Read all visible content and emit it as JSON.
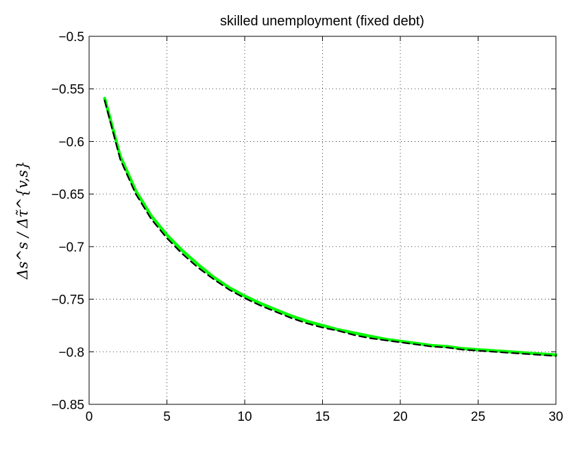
{
  "chart_data": {
    "type": "line",
    "title": "skilled unemployment (fixed debt)",
    "xlabel": "",
    "ylabel": "Δs^s / Δτ̃^{v,s}",
    "xlim": [
      0,
      30
    ],
    "ylim": [
      -0.85,
      -0.5
    ],
    "grid": true,
    "x_ticks": [
      0,
      5,
      10,
      15,
      20,
      25,
      30
    ],
    "y_ticks": [
      -0.5,
      -0.55,
      -0.6,
      -0.65,
      -0.7,
      -0.75,
      -0.8,
      -0.85
    ],
    "x_tick_labels": [
      "0",
      "5",
      "10",
      "15",
      "20",
      "25",
      "30"
    ],
    "y_tick_labels": [
      "−0.5",
      "−0.55",
      "−0.6",
      "−0.65",
      "−0.7",
      "−0.75",
      "−0.8",
      "−0.85"
    ],
    "series": [
      {
        "style": "solid",
        "color": "#00ff00",
        "x": [
          1,
          2,
          3,
          4,
          5,
          6,
          7,
          8,
          9,
          10,
          11,
          12,
          13,
          14,
          15,
          16,
          17,
          18,
          19,
          20,
          21,
          22,
          23,
          24,
          25,
          26,
          27,
          28,
          29,
          30
        ],
        "y": [
          -0.559,
          -0.614,
          -0.647,
          -0.671,
          -0.689,
          -0.704,
          -0.717,
          -0.729,
          -0.739,
          -0.747,
          -0.754,
          -0.76,
          -0.766,
          -0.771,
          -0.775,
          -0.779,
          -0.782,
          -0.785,
          -0.788,
          -0.79,
          -0.792,
          -0.794,
          -0.795,
          -0.797,
          -0.798,
          -0.799,
          -0.8,
          -0.801,
          -0.802,
          -0.803
        ]
      },
      {
        "style": "dashed",
        "color": "#000000",
        "x": [
          1,
          2,
          3,
          4,
          5,
          6,
          7,
          8,
          9,
          10,
          11,
          12,
          13,
          14,
          15,
          16,
          17,
          18,
          19,
          20,
          21,
          22,
          23,
          24,
          25,
          26,
          27,
          28,
          29,
          30
        ],
        "y": [
          -0.561,
          -0.617,
          -0.65,
          -0.674,
          -0.692,
          -0.707,
          -0.72,
          -0.731,
          -0.741,
          -0.749,
          -0.756,
          -0.762,
          -0.768,
          -0.773,
          -0.777,
          -0.78,
          -0.784,
          -0.787,
          -0.789,
          -0.791,
          -0.793,
          -0.795,
          -0.796,
          -0.798,
          -0.799,
          -0.8,
          -0.801,
          -0.802,
          -0.803,
          -0.804
        ]
      }
    ]
  }
}
